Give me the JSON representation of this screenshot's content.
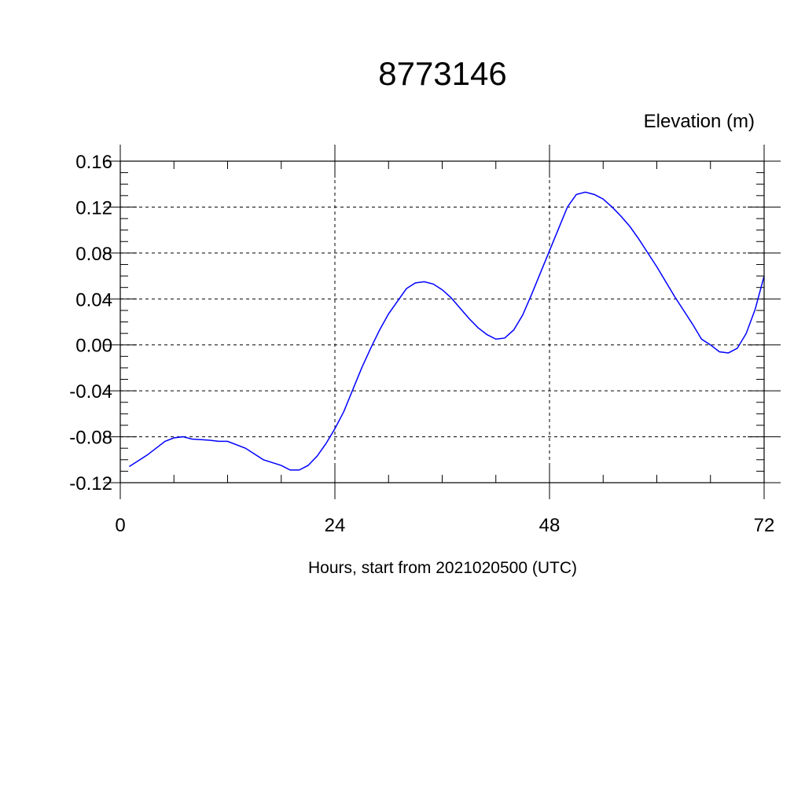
{
  "chart_data": {
    "type": "line",
    "title": "8773146",
    "ylabel": "Elevation (m)",
    "xlabel": "Hours, start from 2021020500 (UTC)",
    "xlim": [
      0,
      72
    ],
    "ylim": [
      -0.12,
      0.16
    ],
    "x_ticks": [
      "0",
      "24",
      "48",
      "72"
    ],
    "x_tick_values": [
      0,
      24,
      48,
      72
    ],
    "y_ticks": [
      "0.16",
      "0.12",
      "0.08",
      "0.04",
      "0.00",
      "-0.04",
      "-0.08",
      "-0.12"
    ],
    "y_tick_values": [
      0.16,
      0.12,
      0.08,
      0.04,
      0.0,
      -0.04,
      -0.08,
      -0.12
    ],
    "grid": true,
    "line_color": "#0000ff",
    "series": [
      {
        "x": [
          1,
          3,
          4,
          5,
          6,
          7,
          8,
          10,
          11,
          12,
          14,
          16,
          18,
          19,
          20,
          21,
          22,
          23,
          24,
          25,
          26,
          27,
          28,
          29,
          30,
          31,
          32,
          33,
          34,
          35,
          36,
          37,
          38,
          39,
          40,
          41,
          42,
          43,
          44,
          45,
          46,
          47,
          48,
          49,
          50,
          51,
          52,
          53,
          54,
          55,
          56,
          57,
          58,
          59,
          60,
          61,
          62,
          63,
          64,
          65,
          66,
          67,
          68,
          69,
          70,
          71,
          72
        ],
        "y": [
          -0.106,
          -0.096,
          -0.09,
          -0.084,
          -0.081,
          -0.08,
          -0.082,
          -0.083,
          -0.084,
          -0.084,
          -0.09,
          -0.1,
          -0.105,
          -0.109,
          -0.109,
          -0.105,
          -0.097,
          -0.086,
          -0.073,
          -0.058,
          -0.039,
          -0.02,
          -0.003,
          0.013,
          0.027,
          0.038,
          0.049,
          0.054,
          0.055,
          0.053,
          0.048,
          0.041,
          0.032,
          0.023,
          0.015,
          0.009,
          0.005,
          0.006,
          0.013,
          0.026,
          0.044,
          0.063,
          0.082,
          0.101,
          0.12,
          0.131,
          0.133,
          0.131,
          0.127,
          0.12,
          0.112,
          0.103,
          0.092,
          0.08,
          0.068,
          0.055,
          0.042,
          0.03,
          0.018,
          0.005,
          0.0,
          -0.006,
          -0.007,
          -0.003,
          0.01,
          0.031,
          0.06
        ]
      }
    ]
  }
}
